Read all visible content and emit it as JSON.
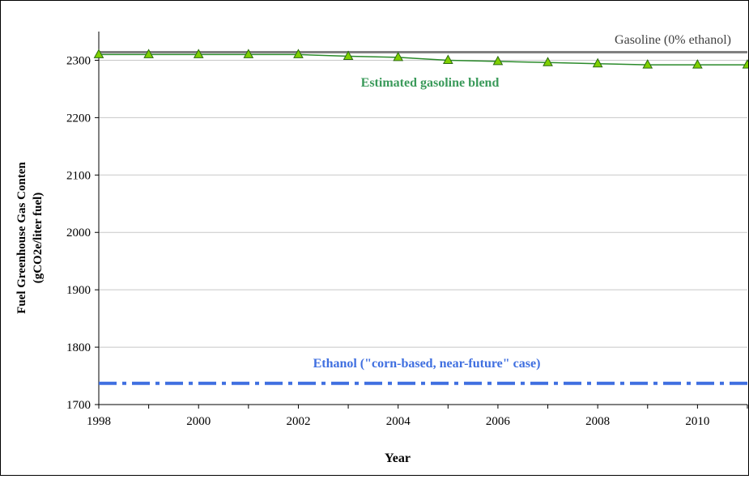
{
  "chart_data": {
    "type": "line",
    "title": "",
    "xlabel": "Year",
    "ylabel_line1": "Fuel Greenhouse Gas Conten",
    "ylabel_line2": "(gCO2e/liter fuel)",
    "xlim": [
      1998,
      2011
    ],
    "ylim": [
      1700,
      2350
    ],
    "x_ticks": [
      1998,
      2000,
      2002,
      2004,
      2006,
      2008,
      2010
    ],
    "y_ticks": [
      1700,
      1800,
      1900,
      2000,
      2100,
      2200,
      2300
    ],
    "grid": "horizontal",
    "legend": "none",
    "series": [
      {
        "name": "Gasoline (0% ethanol)",
        "color": "#808080",
        "style": "solid",
        "x": [
          1998,
          2011
        ],
        "values": [
          2314,
          2314
        ]
      },
      {
        "name": "Estimated gasoline blend",
        "color": "#2a8a2a",
        "label_color": "#3a9a5a",
        "marker": "triangle",
        "marker_fill": "#7fd000",
        "style": "solid",
        "x": [
          1998,
          1999,
          2000,
          2001,
          2002,
          2003,
          2004,
          2005,
          2006,
          2007,
          2008,
          2009,
          2010,
          2011
        ],
        "values": [
          2310,
          2310,
          2310,
          2310,
          2310,
          2307,
          2305,
          2300,
          2298,
          2296,
          2294,
          2292,
          2292,
          2292
        ]
      },
      {
        "name": "Ethanol (\"corn-based, near-future\" case)",
        "color": "#3f6fe0",
        "style": "dash-dot",
        "x": [
          1998,
          2011
        ],
        "values": [
          1737,
          1737
        ]
      }
    ]
  }
}
